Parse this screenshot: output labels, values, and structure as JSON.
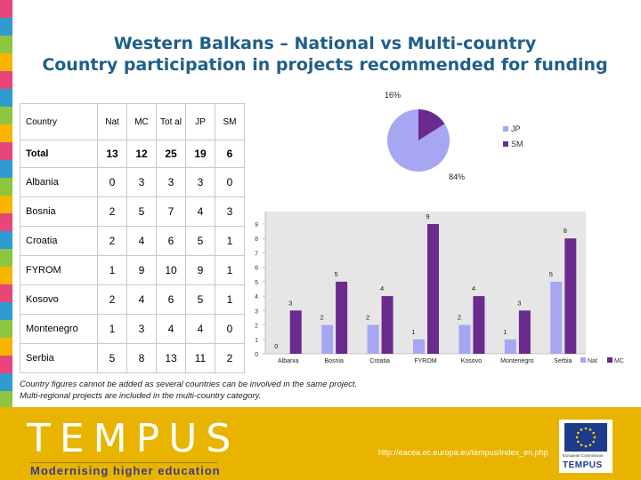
{
  "title_line1": "Western Balkans – National vs Multi-country",
  "title_line2": "Country participation in projects recommended for funding",
  "table": {
    "headers": [
      "Country",
      "Nat",
      "MC",
      "Tot al",
      "JP",
      "SM"
    ],
    "total": {
      "label": "Total",
      "values": [
        "13",
        "12",
        "25",
        "19",
        "6"
      ]
    },
    "rows": [
      {
        "country": "Albania",
        "values": [
          "0",
          "3",
          "3",
          "3",
          "0"
        ]
      },
      {
        "country": "Bosnia",
        "values": [
          "2",
          "5",
          "7",
          "4",
          "3"
        ]
      },
      {
        "country": "Croatia",
        "values": [
          "2",
          "4",
          "6",
          "5",
          "1"
        ]
      },
      {
        "country": "FYROM",
        "values": [
          "1",
          "9",
          "10",
          "9",
          "1"
        ]
      },
      {
        "country": "Kosovo",
        "values": [
          "2",
          "4",
          "6",
          "5",
          "1"
        ]
      },
      {
        "country": "Montenegro",
        "values": [
          "1",
          "3",
          "4",
          "4",
          "0"
        ]
      },
      {
        "country": "Serbia",
        "values": [
          "5",
          "8",
          "13",
          "11",
          "2"
        ]
      }
    ]
  },
  "notes": [
    "Country figures cannot be added as several countries can be involved in the same project.",
    "Multi-regional projects are included in the multi-country category."
  ],
  "footer": {
    "logo_text": "TEMPUS",
    "tagline": "Modernising higher education",
    "url": "http://eacea.ec.europa.eu/tempus/index_en.php",
    "eu_small": "European Commission",
    "eu_logo": "TEMPUS"
  },
  "colors": {
    "nat": "#a6a6f2",
    "mc": "#6a2a8e",
    "title": "#1f5f88",
    "footer": "#e8b400"
  },
  "chart_data": [
    {
      "type": "pie",
      "slices": [
        {
          "name": "JP",
          "value": 84,
          "label": "84%"
        },
        {
          "name": "SM",
          "value": 16,
          "label": "16%"
        }
      ],
      "legend": "right"
    },
    {
      "type": "bar",
      "categories": [
        "Albania",
        "Bosnia",
        "Croatia",
        "FYROM",
        "Kosovo",
        "Montenegro",
        "Serbia"
      ],
      "series": [
        {
          "name": "Nat",
          "values": [
            0,
            2,
            2,
            1,
            2,
            1,
            5
          ]
        },
        {
          "name": "MC",
          "values": [
            3,
            5,
            4,
            9,
            4,
            3,
            8
          ]
        }
      ],
      "ylim": [
        0,
        9
      ],
      "yticks": [
        0,
        1,
        2,
        3,
        4,
        5,
        6,
        7,
        8,
        9
      ],
      "legend": "bottom-right"
    }
  ]
}
